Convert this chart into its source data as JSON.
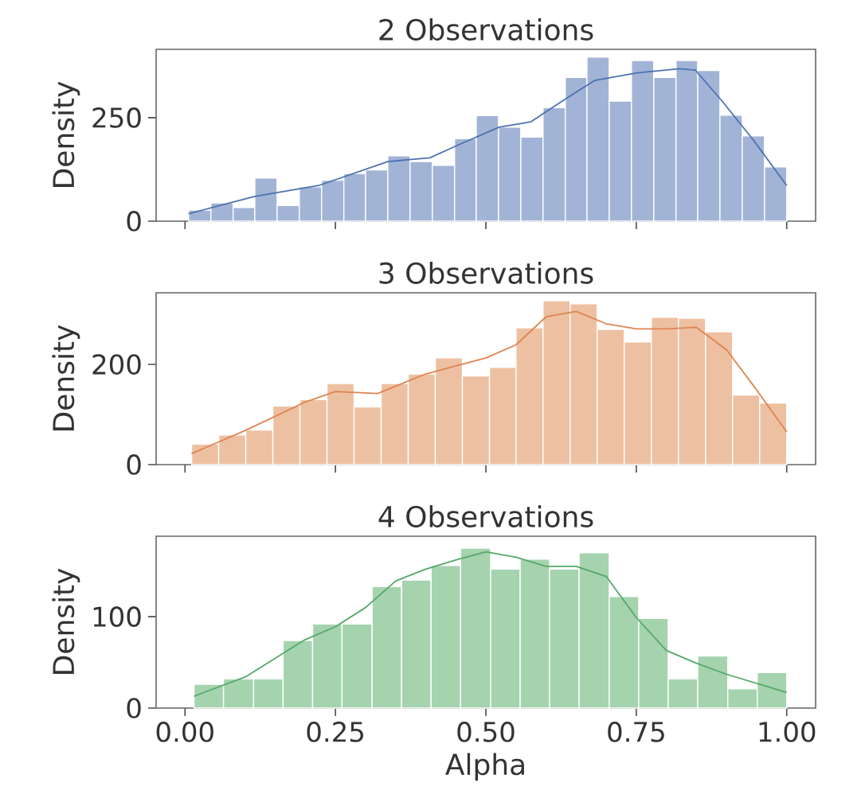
{
  "chart_data": [
    {
      "type": "histogram",
      "title": "2 Observations",
      "ylabel": "Density",
      "xlim": [
        -0.048,
        1.048
      ],
      "ylim": [
        0,
        415
      ],
      "xticks": [
        0,
        0.25,
        0.5,
        0.75,
        1
      ],
      "yticks": [
        0,
        250
      ],
      "tick_labels": "y",
      "series": [
        {
          "color": "#a2b4d6",
          "bins": [
            0.006,
            0.043,
            0.08,
            0.116,
            0.153,
            0.19,
            0.227,
            0.264,
            0.3,
            0.337,
            0.374,
            0.411,
            0.448,
            0.484,
            0.521,
            0.558,
            0.595,
            0.632,
            0.668,
            0.705,
            0.742,
            0.779,
            0.816,
            0.852,
            0.889,
            0.926,
            0.963,
            1.0
          ],
          "values": [
            27,
            44,
            33,
            104,
            38,
            83,
            99,
            115,
            124,
            158,
            144,
            135,
            199,
            255,
            227,
            203,
            274,
            347,
            396,
            290,
            388,
            347,
            388,
            364,
            256,
            206,
            131
          ]
        },
        {
          "type": "line",
          "color": "#4c72b0",
          "x": [
            0.006,
            0.116,
            0.222,
            0.337,
            0.407,
            0.451,
            0.522,
            0.575,
            0.628,
            0.681,
            0.751,
            0.822,
            0.848,
            0.892,
            0.945,
            1.0
          ],
          "values": [
            18,
            60,
            86,
            144,
            153,
            182,
            227,
            240,
            291,
            340,
            358,
            368,
            365,
            291,
            195,
            86
          ]
        }
      ]
    },
    {
      "type": "histogram",
      "title": "3 Observations",
      "ylabel": "Density",
      "xlim": [
        -0.048,
        1.048
      ],
      "ylim": [
        0,
        343
      ],
      "xticks": [
        0,
        0.25,
        0.5,
        0.75,
        1
      ],
      "yticks": [
        0,
        200
      ],
      "tick_labels": "y",
      "series": [
        {
          "color": "#eec0a2",
          "bins": [
            0.011,
            0.056,
            0.101,
            0.146,
            0.191,
            0.236,
            0.281,
            0.326,
            0.371,
            0.416,
            0.461,
            0.506,
            0.55,
            0.595,
            0.64,
            0.685,
            0.73,
            0.775,
            0.82,
            0.865,
            0.91,
            0.955,
            1.0
          ],
          "values": [
            41,
            59,
            69,
            117,
            130,
            162,
            115,
            162,
            181,
            213,
            177,
            194,
            273,
            327,
            321,
            270,
            245,
            294,
            292,
            265,
            139,
            123
          ]
        },
        {
          "type": "line",
          "color": "#dd8452",
          "x": [
            0.011,
            0.1,
            0.2,
            0.25,
            0.32,
            0.4,
            0.5,
            0.55,
            0.6,
            0.65,
            0.7,
            0.75,
            0.8,
            0.85,
            0.9,
            0.95,
            1.0
          ],
          "values": [
            22,
            68,
            125,
            146,
            142,
            181,
            213,
            239,
            295,
            306,
            281,
            271,
            271,
            274,
            229,
            149,
            65
          ]
        }
      ]
    },
    {
      "type": "histogram",
      "title": "4 Observations",
      "xlabel": "Alpha",
      "ylabel": "Density",
      "xlim": [
        -0.048,
        1.048
      ],
      "ylim": [
        0,
        188
      ],
      "xticks": [
        {
          "value": 0,
          "label": "0.00"
        },
        {
          "value": 0.25,
          "label": "0.25"
        },
        {
          "value": 0.5,
          "label": "0.50"
        },
        {
          "value": 0.75,
          "label": "0.75"
        },
        {
          "value": 1,
          "label": "1.00"
        }
      ],
      "yticks": [
        0,
        100
      ],
      "series": [
        {
          "color": "#a5d3ae",
          "bins": [
            0.015,
            0.064,
            0.114,
            0.163,
            0.212,
            0.261,
            0.311,
            0.36,
            0.409,
            0.458,
            0.508,
            0.557,
            0.606,
            0.655,
            0.705,
            0.754,
            0.803,
            0.852,
            0.902,
            0.951,
            1.0
          ],
          "values": [
            26,
            32,
            32,
            74,
            92,
            92,
            133,
            140,
            156,
            175,
            152,
            163,
            152,
            170,
            122,
            98,
            32,
            57,
            21,
            39
          ]
        },
        {
          "type": "line",
          "color": "#55a868",
          "x": [
            0.015,
            0.1,
            0.2,
            0.25,
            0.3,
            0.35,
            0.4,
            0.45,
            0.5,
            0.55,
            0.6,
            0.65,
            0.7,
            0.75,
            0.8,
            0.85,
            0.9,
            1.0
          ],
          "values": [
            13,
            34,
            75,
            89,
            110,
            139,
            152,
            162,
            171,
            165,
            155,
            155,
            144,
            99,
            63,
            49,
            37,
            17
          ]
        }
      ]
    }
  ]
}
